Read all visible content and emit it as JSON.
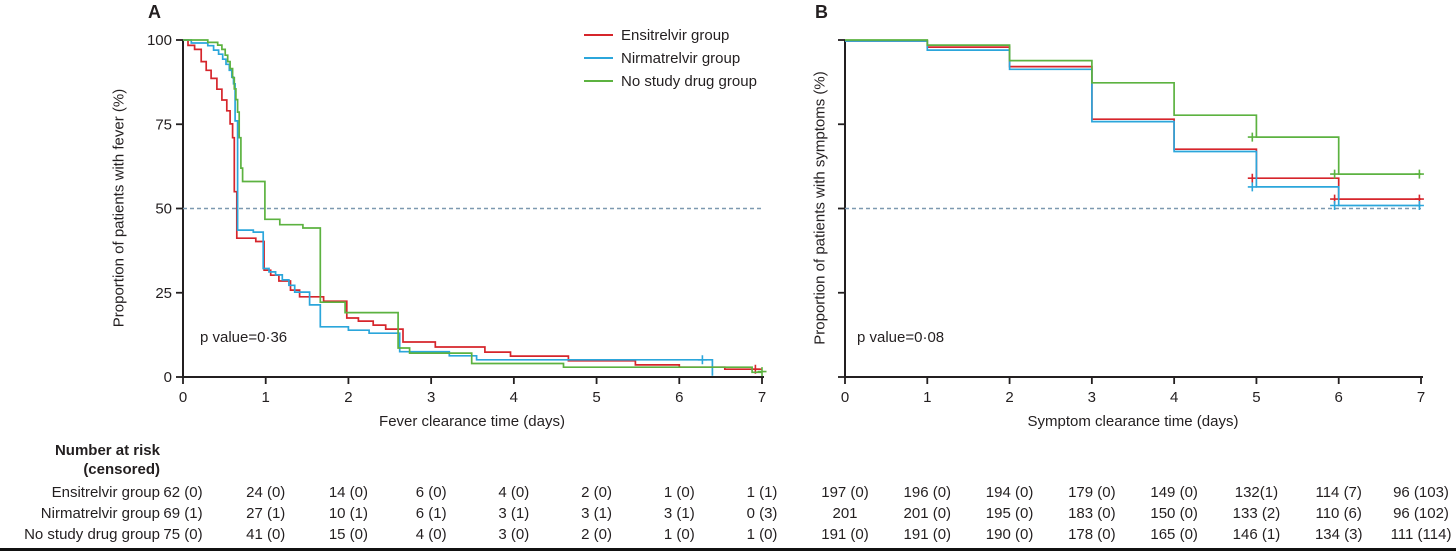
{
  "figure": {
    "panels": [
      {
        "letter": "A",
        "ylabel": "Proportion of patients with fever (%)",
        "xlabel": "Fever clearance time (days)",
        "p_value": "p value=0·36"
      },
      {
        "letter": "B",
        "ylabel": "Proportion of patients with symptoms (%)",
        "xlabel": "Symptom clearance time (days)",
        "p_value": "p value=0·08"
      }
    ],
    "legend": {
      "position": "top-right-of-panel-A",
      "items": [
        {
          "label": "Ensitrelvir group",
          "color": "#d6252b"
        },
        {
          "label": "Nirmatrelvir group",
          "color": "#2ba6db"
        },
        {
          "label": "No study drug group",
          "color": "#5cb240"
        }
      ]
    },
    "colors": {
      "axis": "#231f20",
      "reference_line": "#7d99b0",
      "background": "#ffffff"
    }
  },
  "chart_data": [
    {
      "type": "line",
      "subtype": "kaplan-meier-step",
      "panel": "A",
      "title": "",
      "xlabel": "Fever clearance time (days)",
      "ylabel": "Proportion of patients with fever (%)",
      "xlim": [
        0,
        7
      ],
      "ylim": [
        0,
        100
      ],
      "xticks": [
        0,
        1,
        2,
        3,
        4,
        5,
        6,
        7
      ],
      "yticks": [
        0,
        25,
        50,
        75,
        100
      ],
      "show_ytick_labels": true,
      "grid": false,
      "reference_line_y": 50,
      "p_value": "p value=0·36",
      "series": [
        {
          "name": "Ensitrelvir group",
          "color": "#d6252b",
          "step_points": [
            [
              0,
              100
            ],
            [
              0.06,
              98.4
            ],
            [
              0.14,
              97.2
            ],
            [
              0.22,
              93.6
            ],
            [
              0.28,
              91
            ],
            [
              0.34,
              88.6
            ],
            [
              0.41,
              85.4
            ],
            [
              0.47,
              82.2
            ],
            [
              0.53,
              79
            ],
            [
              0.57,
              75.1
            ],
            [
              0.6,
              71
            ],
            [
              0.62,
              55
            ],
            [
              0.65,
              41.2
            ],
            [
              0.88,
              40.2
            ],
            [
              0.98,
              31.7
            ],
            [
              1.06,
              30.2
            ],
            [
              1.16,
              28.5
            ],
            [
              1.3,
              25.8
            ],
            [
              1.41,
              23.8
            ],
            [
              1.7,
              22.5
            ],
            [
              1.98,
              17.5
            ],
            [
              2.12,
              16.6
            ],
            [
              2.3,
              15.4
            ],
            [
              2.45,
              14.2
            ],
            [
              2.66,
              10.4
            ],
            [
              3.05,
              8.9
            ],
            [
              3.65,
              7.4
            ],
            [
              3.96,
              6.2
            ],
            [
              4.66,
              4.8
            ],
            [
              5.47,
              3.6
            ],
            [
              6.0,
              2.9
            ],
            [
              6.55,
              2.3
            ],
            [
              7,
              2.3
            ]
          ],
          "censors": [
            [
              6.92,
              2.3
            ]
          ]
        },
        {
          "name": "Nirmatrelvir group",
          "color": "#2ba6db",
          "step_points": [
            [
              0,
              100
            ],
            [
              0.1,
              99.1
            ],
            [
              0.3,
              98.3
            ],
            [
              0.37,
              97
            ],
            [
              0.43,
              95.8
            ],
            [
              0.48,
              94.3
            ],
            [
              0.52,
              92.8
            ],
            [
              0.56,
              91
            ],
            [
              0.59,
              89
            ],
            [
              0.61,
              87
            ],
            [
              0.63,
              76
            ],
            [
              0.66,
              43.6
            ],
            [
              0.85,
              43.0
            ],
            [
              0.97,
              32.2
            ],
            [
              1.04,
              31.2
            ],
            [
              1.12,
              30.3
            ],
            [
              1.2,
              28.8
            ],
            [
              1.28,
              27.2
            ],
            [
              1.35,
              25.2
            ],
            [
              1.53,
              21.4
            ],
            [
              1.66,
              14.9
            ],
            [
              2.0,
              13.9
            ],
            [
              2.25,
              13.0
            ],
            [
              2.62,
              7.5
            ],
            [
              3.22,
              6.3
            ],
            [
              3.55,
              5.1
            ],
            [
              6.38,
              5.1
            ],
            [
              6.4,
              0.4
            ]
          ],
          "censors": [
            [
              6.28,
              5.1
            ]
          ]
        },
        {
          "name": "No study drug group",
          "color": "#5cb240",
          "step_points": [
            [
              0,
              100
            ],
            [
              0.3,
              99.3
            ],
            [
              0.42,
              98.5
            ],
            [
              0.47,
              97.2
            ],
            [
              0.51,
              95.5
            ],
            [
              0.54,
              93.6
            ],
            [
              0.57,
              91.5
            ],
            [
              0.6,
              88.8
            ],
            [
              0.62,
              85.5
            ],
            [
              0.64,
              82.3
            ],
            [
              0.66,
              78.6
            ],
            [
              0.68,
              71
            ],
            [
              0.7,
              62
            ],
            [
              0.72,
              58.0
            ],
            [
              0.99,
              46.8
            ],
            [
              1.17,
              45.2
            ],
            [
              1.45,
              44.2
            ],
            [
              1.66,
              22.2
            ],
            [
              1.96,
              19.1
            ],
            [
              2.6,
              8.6
            ],
            [
              2.74,
              7.1
            ],
            [
              3.49,
              4.0
            ],
            [
              4.6,
              2.9
            ],
            [
              6.88,
              1.4
            ],
            [
              7,
              1.4
            ]
          ],
          "censors": [
            [
              7.0,
              1.6
            ]
          ]
        }
      ]
    },
    {
      "type": "line",
      "subtype": "kaplan-meier-step",
      "panel": "B",
      "title": "",
      "xlabel": "Symptom clearance time (days)",
      "ylabel": "Proportion of patients with symptoms (%)",
      "xlim": [
        0,
        7
      ],
      "ylim": [
        0,
        100
      ],
      "xticks": [
        0,
        1,
        2,
        3,
        4,
        5,
        6,
        7
      ],
      "yticks": [
        0,
        25,
        50,
        75,
        100
      ],
      "show_ytick_labels": false,
      "grid": false,
      "reference_line_y": 50,
      "p_value": "p value=0·08",
      "series": [
        {
          "name": "Ensitrelvir group",
          "color": "#d6252b",
          "step_points": [
            [
              0,
              99.7
            ],
            [
              1,
              97.9
            ],
            [
              2,
              92.1
            ],
            [
              3,
              76.5
            ],
            [
              4,
              67.6
            ],
            [
              5,
              59.0
            ],
            [
              6,
              52.8
            ],
            [
              7,
              52.8
            ]
          ],
          "censors": [
            [
              4.95,
              59.0
            ],
            [
              5.95,
              52.8
            ],
            [
              6.98,
              52.8
            ]
          ]
        },
        {
          "name": "Nirmatrelvir group",
          "color": "#2ba6db",
          "step_points": [
            [
              0,
              99.7
            ],
            [
              1,
              97.0
            ],
            [
              2,
              91.3
            ],
            [
              3,
              75.8
            ],
            [
              4,
              66.9
            ],
            [
              5,
              56.4
            ],
            [
              6,
              50.9
            ],
            [
              7,
              50.9
            ]
          ],
          "censors": [
            [
              4.95,
              56.4
            ],
            [
              5.95,
              50.9
            ],
            [
              6.98,
              50.9
            ]
          ]
        },
        {
          "name": "No study drug group",
          "color": "#5cb240",
          "step_points": [
            [
              0,
              100
            ],
            [
              1,
              98.5
            ],
            [
              2,
              93.9
            ],
            [
              3,
              87.3
            ],
            [
              4,
              77.7
            ],
            [
              5,
              71.2
            ],
            [
              6,
              60.2
            ],
            [
              7,
              60.2
            ]
          ],
          "censors": [
            [
              4.95,
              71.2
            ],
            [
              5.95,
              60.2
            ],
            [
              6.98,
              60.2
            ]
          ]
        }
      ]
    }
  ],
  "risk_table": {
    "title_line1": "Number at risk",
    "title_line2": "(censored)",
    "rows": [
      {
        "label": "Ensitrelvir group",
        "panel_a": [
          "62 (0)",
          "24 (0)",
          "14 (0)",
          "6 (0)",
          "4 (0)",
          "2 (0)",
          "1 (0)",
          "1 (1)"
        ],
        "panel_b": [
          "197 (0)",
          "196 (0)",
          "194 (0)",
          "179 (0)",
          "149 (0)",
          "132(1)",
          "114 (7)",
          "96 (103)"
        ]
      },
      {
        "label": "Nirmatrelvir group",
        "panel_a": [
          "69 (1)",
          "27 (1)",
          "10 (1)",
          "6 (1)",
          "3 (1)",
          "3 (1)",
          "3 (1)",
          "0 (3)"
        ],
        "panel_b": [
          "201",
          "201 (0)",
          "195 (0)",
          "183 (0)",
          "150 (0)",
          "133 (2)",
          "110 (6)",
          "96 (102)"
        ]
      },
      {
        "label": "No study drug group",
        "panel_a": [
          "75 (0)",
          "41 (0)",
          "15 (0)",
          "4 (0)",
          "3 (0)",
          "2 (0)",
          "1 (0)",
          "1 (0)"
        ],
        "panel_b": [
          "191 (0)",
          "191 (0)",
          "190 (0)",
          "178 (0)",
          "165 (0)",
          "146 (1)",
          "134 (3)",
          "111 (114)"
        ]
      }
    ]
  }
}
